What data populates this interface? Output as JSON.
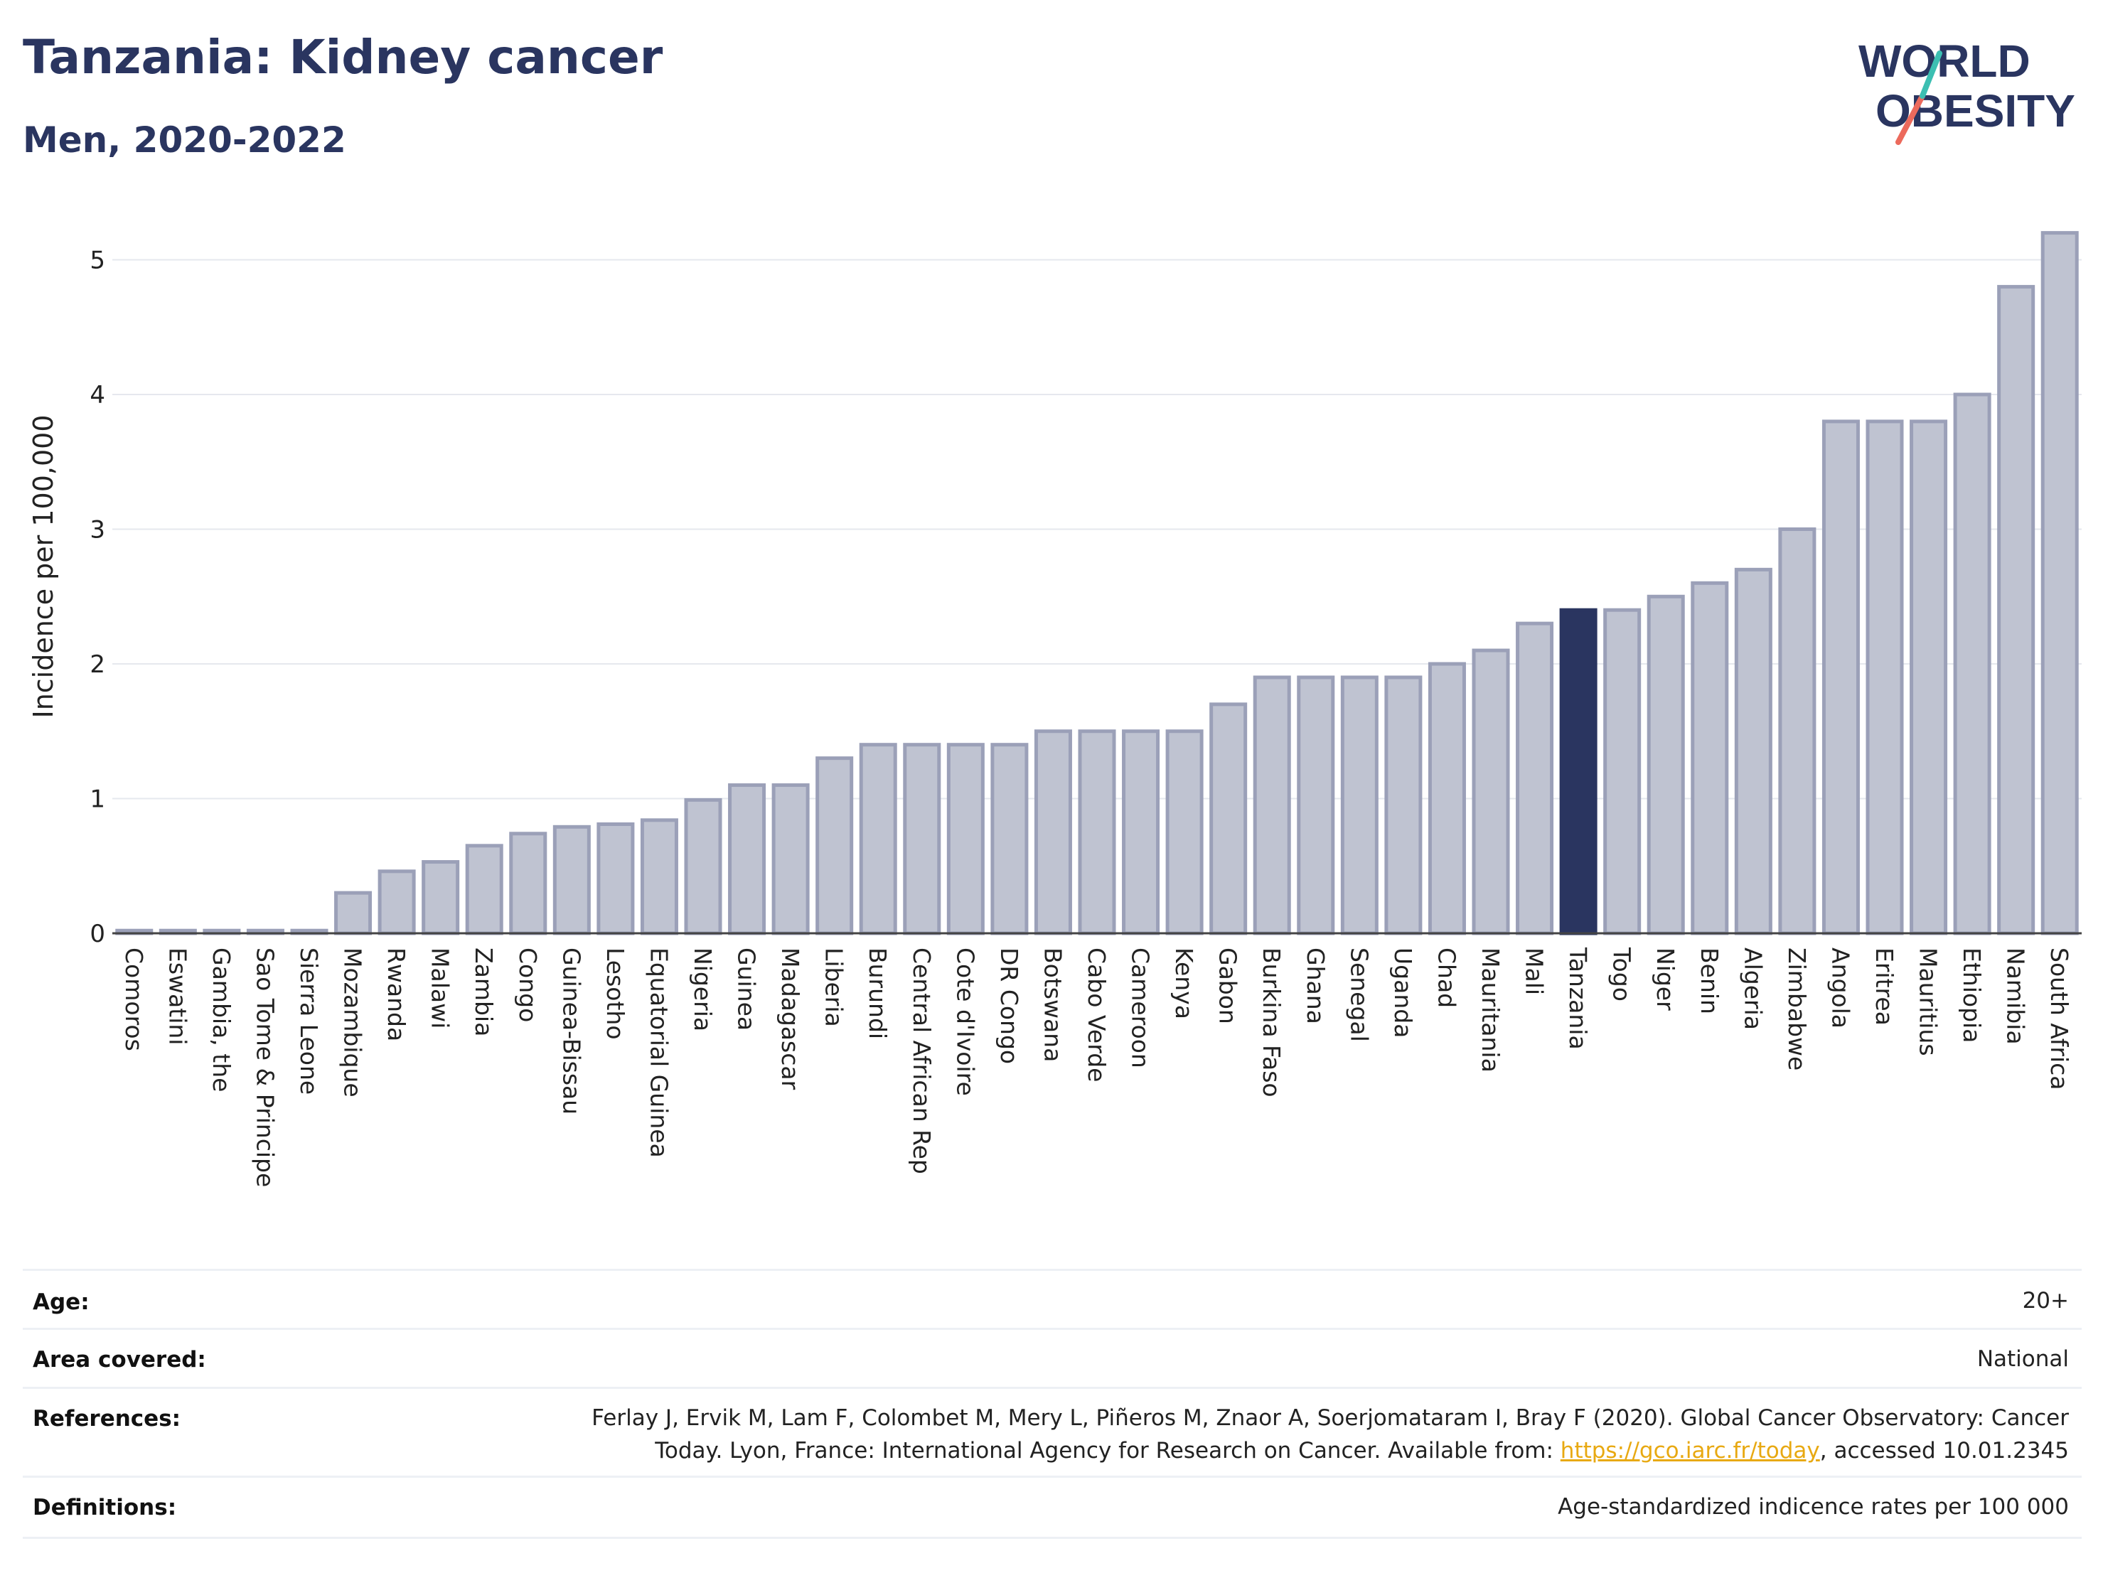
{
  "header": {
    "title": "Tanzania: Kidney cancer",
    "subtitle": "Men, 2020-2022"
  },
  "logo": {
    "line1": "WORLD",
    "line2": "OBESITY"
  },
  "colors": {
    "bar": "#bfc3d1",
    "bar_stroke": "#9ba0b8",
    "highlight": "#2a3560",
    "title": "#2a3560",
    "grid": "#e6e8ee",
    "link": "#e8a912"
  },
  "chart_data": {
    "type": "bar",
    "ylabel": "Incidence per 100,000",
    "ylim": [
      0,
      5.25
    ],
    "yticks": [
      0,
      1,
      2,
      3,
      4,
      5
    ],
    "grid": true,
    "highlight": "Tanzania",
    "categories": [
      "Comoros",
      "Eswatini",
      "Gambia, the",
      "Sao Tome & Principe",
      "Sierra Leone",
      "Mozambique",
      "Rwanda",
      "Malawi",
      "Zambia",
      "Congo",
      "Guinea-Bissau",
      "Lesotho",
      "Equatorial Guinea",
      "Nigeria",
      "Guinea",
      "Madagascar",
      "Liberia",
      "Burundi",
      "Central African Rep",
      "Cote d'Ivoire",
      "DR Congo",
      "Botswana",
      "Cabo Verde",
      "Cameroon",
      "Kenya",
      "Gabon",
      "Burkina Faso",
      "Ghana",
      "Senegal",
      "Uganda",
      "Chad",
      "Mauritania",
      "Mali",
      "Tanzania",
      "Togo",
      "Niger",
      "Benin",
      "Algeria",
      "Zimbabwe",
      "Angola",
      "Eritrea",
      "Mauritius",
      "Ethiopia",
      "Namibia",
      "South Africa"
    ],
    "values": [
      0.02,
      0.02,
      0.02,
      0.02,
      0.02,
      0.3,
      0.46,
      0.53,
      0.65,
      0.74,
      0.79,
      0.81,
      0.84,
      0.99,
      1.1,
      1.1,
      1.3,
      1.4,
      1.4,
      1.4,
      1.4,
      1.5,
      1.5,
      1.5,
      1.5,
      1.7,
      1.9,
      1.9,
      1.9,
      1.9,
      2.0,
      2.1,
      2.3,
      2.4,
      2.4,
      2.5,
      2.6,
      2.7,
      3.0,
      3.8,
      3.8,
      3.8,
      4.0,
      4.8,
      5.2
    ]
  },
  "meta": {
    "age_label": "Age:",
    "age_value": "20+",
    "area_label": "Area covered:",
    "area_value": "National",
    "references_label": "References:",
    "references_line1": "Ferlay J, Ervik M, Lam F, Colombet M, Mery L, Piñeros M, Znaor A, Soerjomataram I, Bray F (2020). Global Cancer Observatory: Cancer",
    "references_line2a": "Today. Lyon, France: International Agency for Research on Cancer. Available from: ",
    "references_link": "https://gco.iarc.fr/today",
    "references_line2b": ", accessed 10.01.2345",
    "definitions_label": "Definitions:",
    "definitions_value": "Age-standardized indicence rates per 100 000"
  }
}
